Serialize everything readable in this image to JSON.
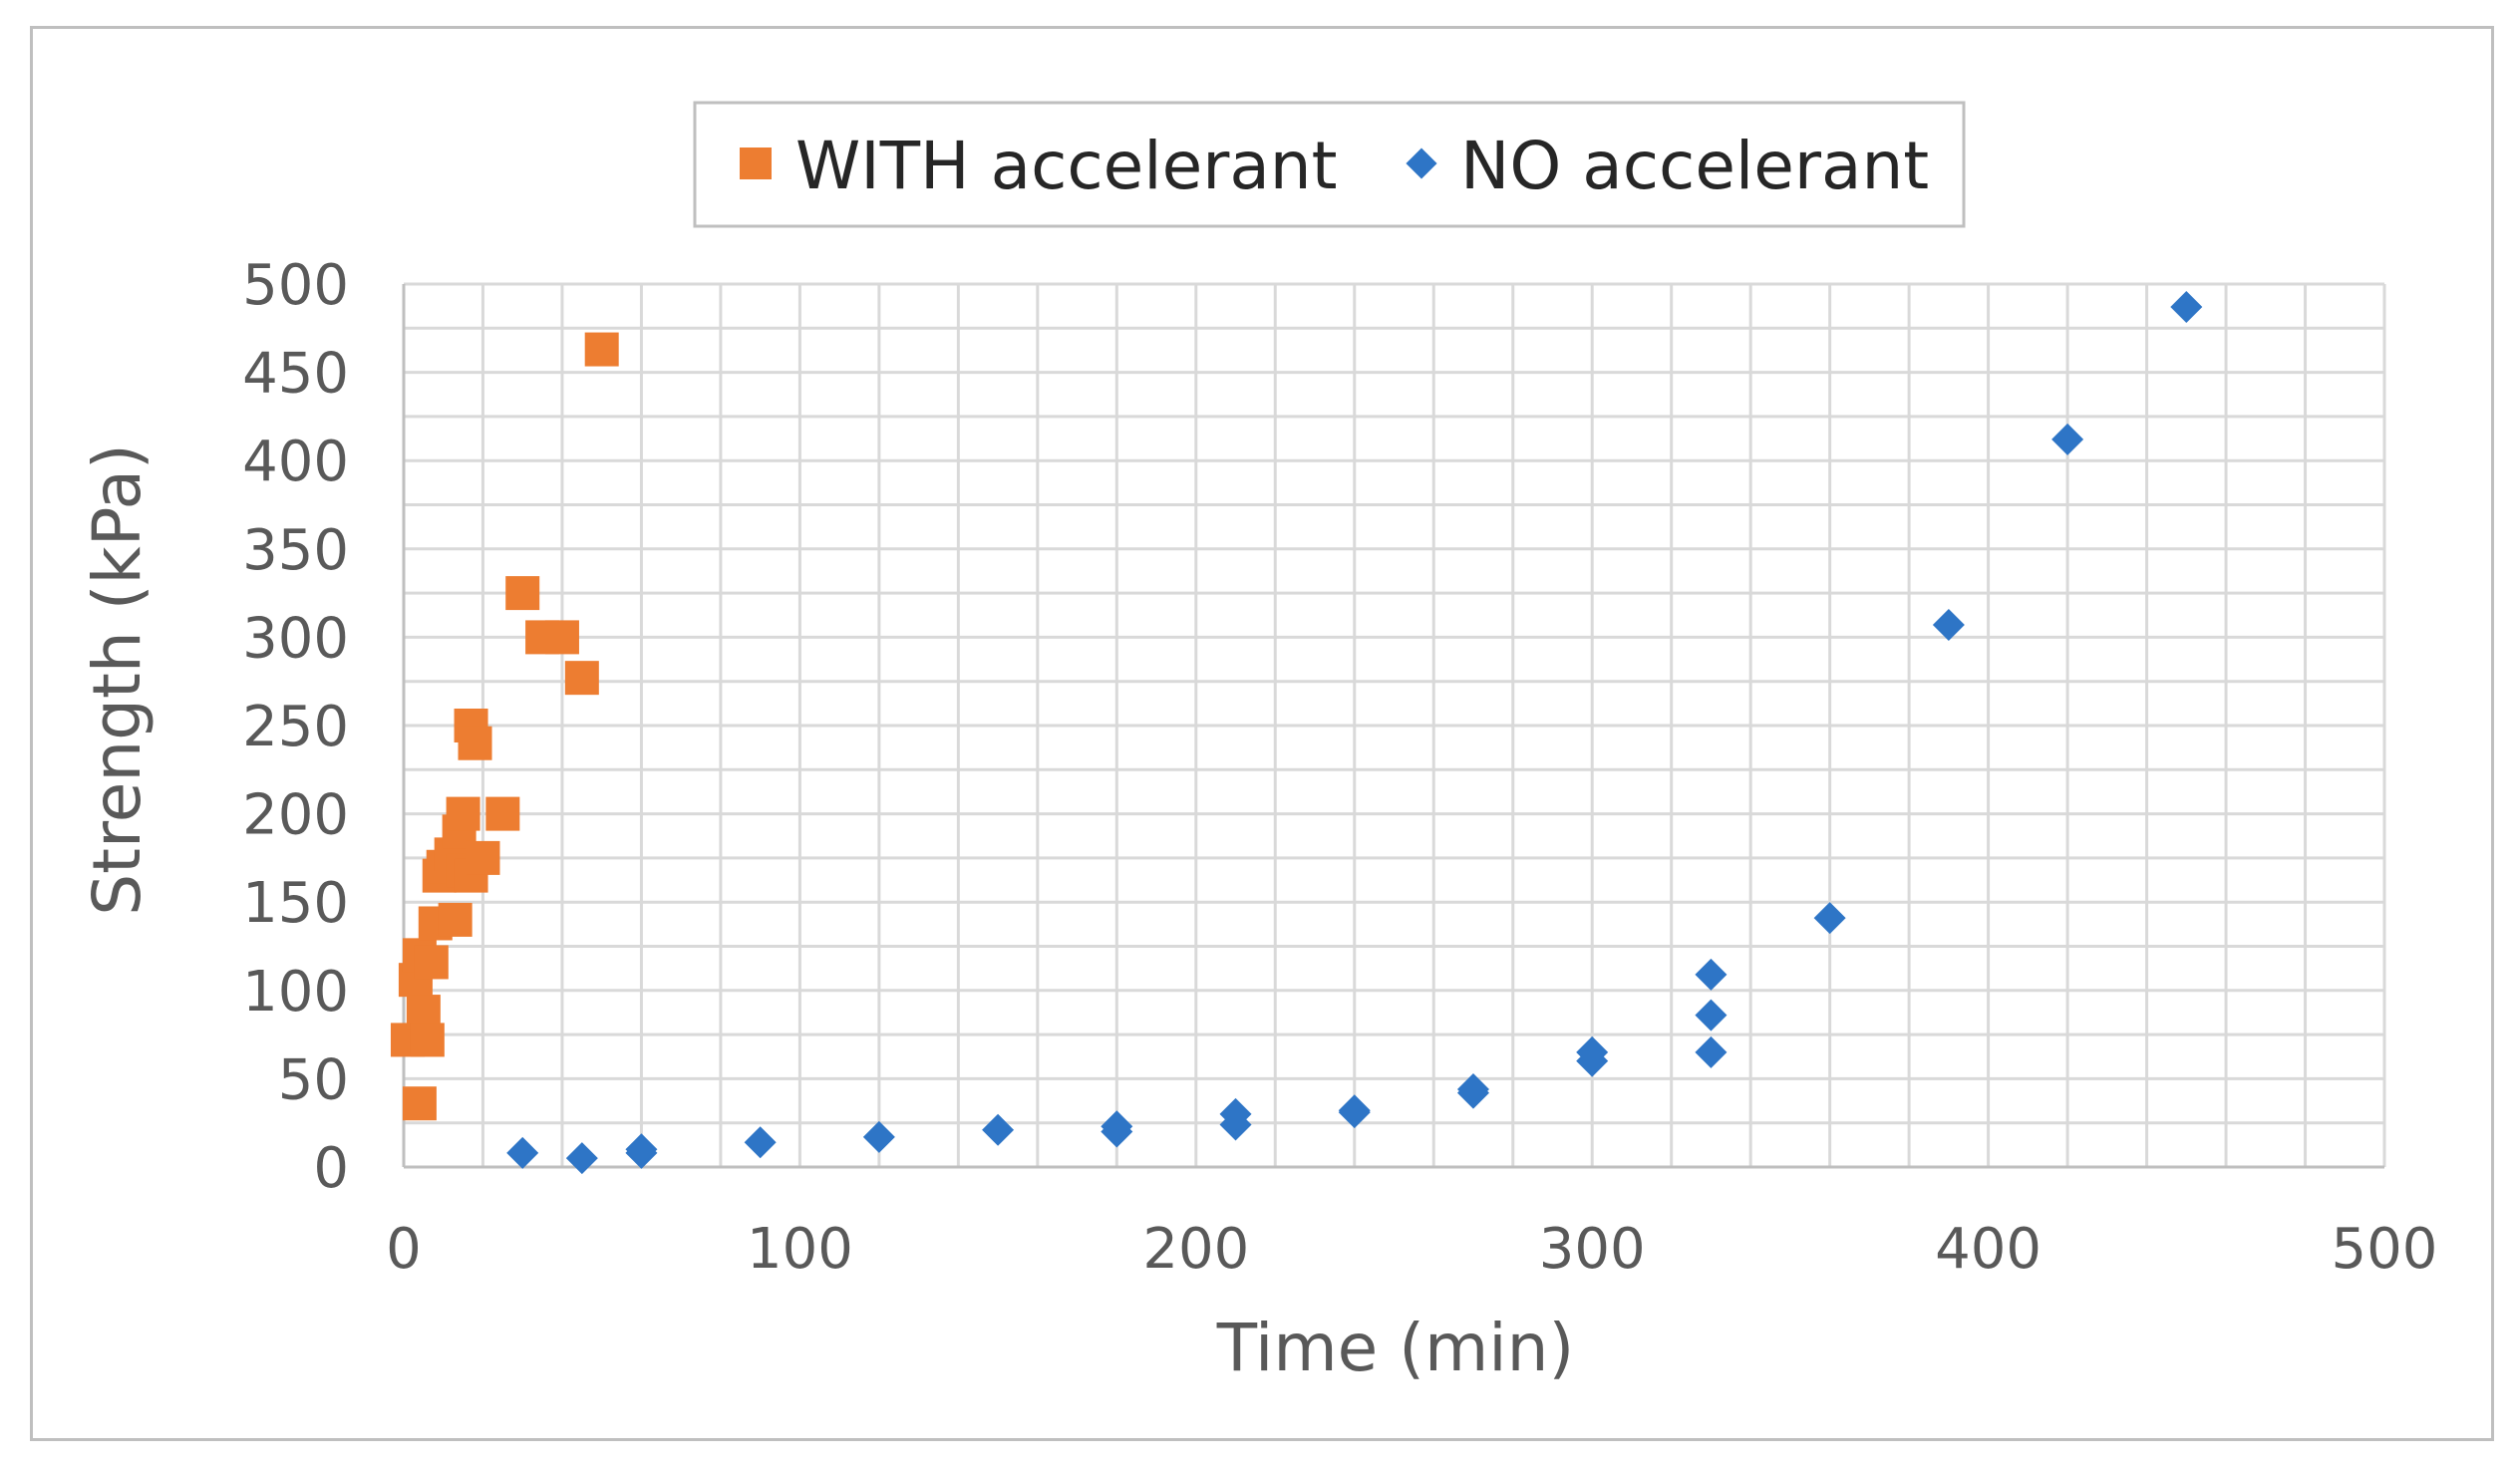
{
  "chart_data": {
    "type": "scatter",
    "title": "",
    "xlabel": "Time (min)",
    "ylabel": "Strength (kPa)",
    "xlim": [
      0,
      500
    ],
    "ylim": [
      0,
      500
    ],
    "x_ticks": [
      0,
      100,
      200,
      300,
      400,
      500
    ],
    "y_ticks": [
      0,
      50,
      100,
      150,
      200,
      250,
      300,
      350,
      400,
      450,
      500
    ],
    "grid": true,
    "legend_position": "top-center",
    "series": [
      {
        "name": "WITH accelerant",
        "marker": "square",
        "color": "#ED7D31",
        "points": [
          [
            1,
            72
          ],
          [
            3,
            106
          ],
          [
            4,
            36
          ],
          [
            4,
            120
          ],
          [
            5,
            88
          ],
          [
            6,
            72
          ],
          [
            7,
            116
          ],
          [
            8,
            138
          ],
          [
            9,
            165
          ],
          [
            10,
            170
          ],
          [
            12,
            177
          ],
          [
            13,
            140
          ],
          [
            14,
            190
          ],
          [
            15,
            200
          ],
          [
            15,
            168
          ],
          [
            17,
            250
          ],
          [
            17,
            165
          ],
          [
            18,
            240
          ],
          [
            20,
            175
          ],
          [
            25,
            200
          ],
          [
            30,
            325
          ],
          [
            35,
            300
          ],
          [
            40,
            300
          ],
          [
            45,
            277
          ],
          [
            50,
            463
          ]
        ]
      },
      {
        "name": "NO accelerant",
        "marker": "diamond",
        "color": "#2E75C6",
        "points": [
          [
            30,
            8
          ],
          [
            45,
            5
          ],
          [
            60,
            8
          ],
          [
            60,
            10
          ],
          [
            90,
            14
          ],
          [
            120,
            17
          ],
          [
            150,
            21
          ],
          [
            180,
            20
          ],
          [
            180,
            23
          ],
          [
            210,
            24
          ],
          [
            210,
            30
          ],
          [
            240,
            31
          ],
          [
            240,
            32
          ],
          [
            270,
            42
          ],
          [
            270,
            44
          ],
          [
            300,
            60
          ],
          [
            300,
            65
          ],
          [
            330,
            65
          ],
          [
            330,
            86
          ],
          [
            330,
            109
          ],
          [
            360,
            141
          ],
          [
            390,
            307
          ],
          [
            420,
            412
          ],
          [
            450,
            487
          ]
        ]
      }
    ]
  }
}
